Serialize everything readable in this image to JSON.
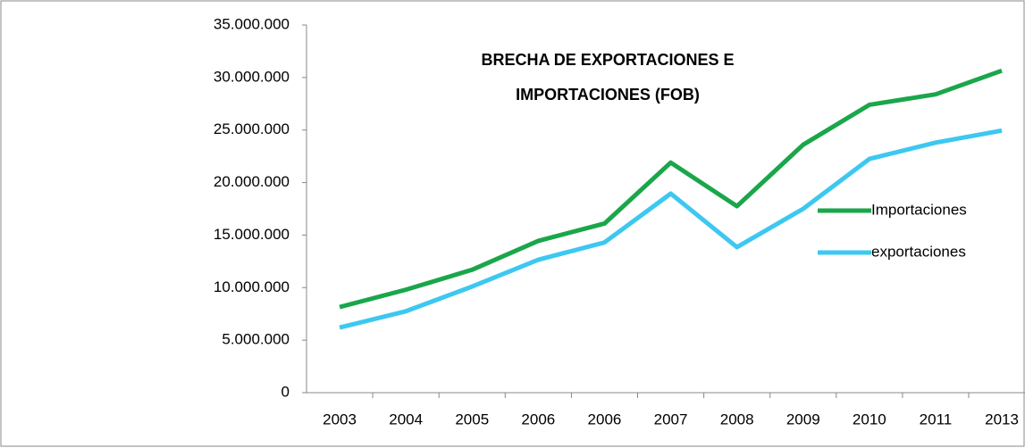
{
  "chart_data": {
    "type": "line",
    "title": "BRECHA DE EXPORTACIONES  E IMPORTACIONES  (FOB)",
    "categories": [
      "2003",
      "2004",
      "2005",
      "2006",
      "2006",
      "2007",
      "2008",
      "2009",
      "2010",
      "2011",
      "2013"
    ],
    "series": [
      {
        "name": "Importaciones",
        "color": "#1aa64a",
        "values": [
          8150000,
          9800000,
          11700000,
          14450000,
          16100000,
          21900000,
          17750000,
          23600000,
          27400000,
          28400000,
          30650000
        ]
      },
      {
        "name": "exportaciones",
        "color": "#3cc8f0",
        "values": [
          6200000,
          7750000,
          10100000,
          12650000,
          14300000,
          18950000,
          13850000,
          17500000,
          22250000,
          23800000,
          24950000
        ]
      }
    ],
    "ylim": [
      0,
      35000000
    ],
    "yticks": [
      0,
      {
        "value": 5000000,
        "label": "5.000.000"
      },
      {
        "value": 10000000,
        "label": "10.000.000"
      },
      {
        "value": 15000000,
        "label": "15.000.000"
      },
      {
        "value": 20000000,
        "label": "20.000.000"
      },
      {
        "value": 25000000,
        "label": "25.000.000"
      },
      {
        "value": 30000000,
        "label": "30.000.000"
      },
      {
        "value": 35000000,
        "label": "35.000.000"
      }
    ],
    "grid": false,
    "legend": "right"
  }
}
